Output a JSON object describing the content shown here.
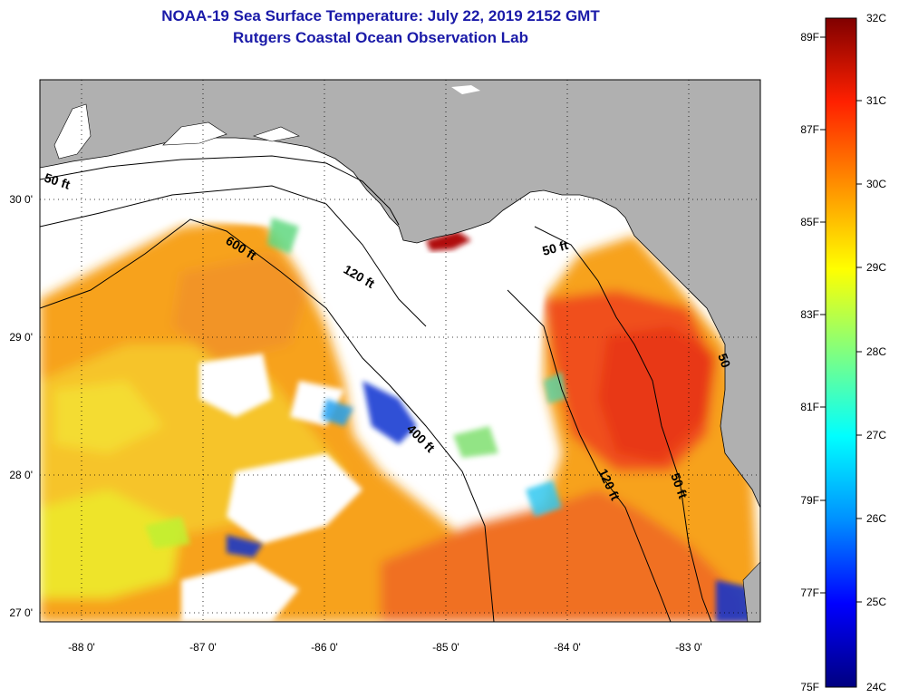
{
  "header": {
    "title_line1": "NOAA-19 Sea Surface Temperature:  July 22, 2019 2152 GMT",
    "title_line2": "Rutgers Coastal Ocean Observation Lab"
  },
  "map": {
    "lat_labels": [
      "30 0'",
      "29 0'",
      "28 0'",
      "27 0'"
    ],
    "lon_labels": [
      "-88 0'",
      "-87 0'",
      "-86 0'",
      "-85 0'",
      "-84 0'",
      "-83 0'"
    ],
    "contour_labels": [
      "50 ft",
      "600 ft",
      "120 ft",
      "50 ft",
      "400 ft",
      "120 ft",
      "50 ft",
      "50"
    ],
    "colors": {
      "land": "#b0b0b0",
      "cloud": "#ffffff"
    }
  },
  "colorbar": {
    "celsius_labels": [
      "32C",
      "31C",
      "30C",
      "29C",
      "28C",
      "27C",
      "26C",
      "25C",
      "24C"
    ],
    "fahrenheit_labels": [
      "89F",
      "87F",
      "85F",
      "83F",
      "81F",
      "79F",
      "77F",
      "75F"
    ],
    "gradient": [
      "#000080",
      "#0000ff",
      "#0090ff",
      "#00ffff",
      "#80ff80",
      "#ffff00",
      "#ff9000",
      "#ff2000",
      "#800000"
    ]
  }
}
